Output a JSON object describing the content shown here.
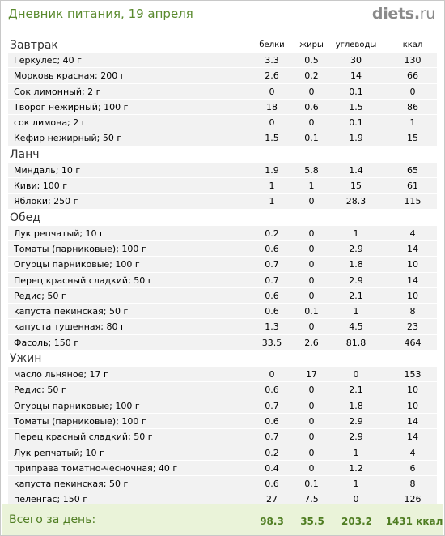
{
  "header": {
    "title": "Дневник питания, 19 апреля",
    "logo_main": "diets",
    "logo_dot": ".",
    "logo_tld": "ru"
  },
  "columns": {
    "protein": "белки",
    "fat": "жиры",
    "carbs": "углеводы",
    "kcal": "ккал"
  },
  "meals": [
    {
      "title": "Завтрак",
      "rows": [
        {
          "name": "Геркулес; 40 г",
          "protein": "3.3",
          "fat": "0.5",
          "carbs": "30",
          "kcal": "130"
        },
        {
          "name": "Морковь красная; 200 г",
          "protein": "2.6",
          "fat": "0.2",
          "carbs": "14",
          "kcal": "66"
        },
        {
          "name": "Сок лимонный; 2 г",
          "protein": "0",
          "fat": "0",
          "carbs": "0.1",
          "kcal": "0"
        },
        {
          "name": "Творог нежирный; 100 г",
          "protein": "18",
          "fat": "0.6",
          "carbs": "1.5",
          "kcal": "86"
        },
        {
          "name": "сок лимона; 2 г",
          "protein": "0",
          "fat": "0",
          "carbs": "0.1",
          "kcal": "1"
        },
        {
          "name": "Кефир нежирный; 50 г",
          "protein": "1.5",
          "fat": "0.1",
          "carbs": "1.9",
          "kcal": "15"
        }
      ]
    },
    {
      "title": "Ланч",
      "rows": [
        {
          "name": "Миндаль; 10 г",
          "protein": "1.9",
          "fat": "5.8",
          "carbs": "1.4",
          "kcal": "65"
        },
        {
          "name": "Киви; 100 г",
          "protein": "1",
          "fat": "1",
          "carbs": "15",
          "kcal": "61"
        },
        {
          "name": "Яблоки; 250 г",
          "protein": "1",
          "fat": "0",
          "carbs": "28.3",
          "kcal": "115"
        }
      ]
    },
    {
      "title": "Обед",
      "rows": [
        {
          "name": "Лук репчатый; 10 г",
          "protein": "0.2",
          "fat": "0",
          "carbs": "1",
          "kcal": "4"
        },
        {
          "name": "Томаты (парниковые); 100 г",
          "protein": "0.6",
          "fat": "0",
          "carbs": "2.9",
          "kcal": "14"
        },
        {
          "name": "Огурцы парниковые; 100 г",
          "protein": "0.7",
          "fat": "0",
          "carbs": "1.8",
          "kcal": "10"
        },
        {
          "name": "Перец красный сладкий; 50 г",
          "protein": "0.7",
          "fat": "0",
          "carbs": "2.9",
          "kcal": "14"
        },
        {
          "name": "Редис; 50 г",
          "protein": "0.6",
          "fat": "0",
          "carbs": "2.1",
          "kcal": "10"
        },
        {
          "name": "капуста пекинская; 50 г",
          "protein": "0.6",
          "fat": "0.1",
          "carbs": "1",
          "kcal": "8"
        },
        {
          "name": "капуста тушенная; 80 г",
          "protein": "1.3",
          "fat": "0",
          "carbs": "4.5",
          "kcal": "23"
        },
        {
          "name": "Фасоль; 150 г",
          "protein": "33.5",
          "fat": "2.6",
          "carbs": "81.8",
          "kcal": "464"
        }
      ]
    },
    {
      "title": "Ужин",
      "rows": [
        {
          "name": "масло льняное; 17 г",
          "protein": "0",
          "fat": "17",
          "carbs": "0",
          "kcal": "153"
        },
        {
          "name": "Редис; 50 г",
          "protein": "0.6",
          "fat": "0",
          "carbs": "2.1",
          "kcal": "10"
        },
        {
          "name": "Огурцы парниковые; 100 г",
          "protein": "0.7",
          "fat": "0",
          "carbs": "1.8",
          "kcal": "10"
        },
        {
          "name": "Томаты (парниковые); 100 г",
          "protein": "0.6",
          "fat": "0",
          "carbs": "2.9",
          "kcal": "14"
        },
        {
          "name": "Перец красный сладкий; 50 г",
          "protein": "0.7",
          "fat": "0",
          "carbs": "2.9",
          "kcal": "14"
        },
        {
          "name": "Лук репчатый; 10 г",
          "protein": "0.2",
          "fat": "0",
          "carbs": "1",
          "kcal": "4"
        },
        {
          "name": "приправа томатно-чесночная; 40 г",
          "protein": "0.4",
          "fat": "0",
          "carbs": "1.2",
          "kcal": "6"
        },
        {
          "name": "капуста пекинская; 50 г",
          "protein": "0.6",
          "fat": "0.1",
          "carbs": "1",
          "kcal": "8"
        },
        {
          "name": "пеленгас; 150 г",
          "protein": "27",
          "fat": "7.5",
          "carbs": "0",
          "kcal": "126"
        }
      ]
    }
  ],
  "total": {
    "label": "Всего за день:",
    "protein": "98.3",
    "fat": "35.5",
    "carbs": "203.2",
    "kcal": "1431 ккал"
  }
}
